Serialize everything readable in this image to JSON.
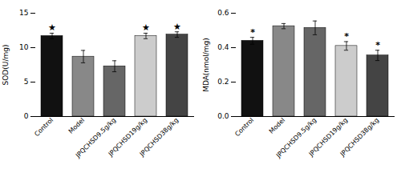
{
  "chart_data": [
    {
      "type": "bar",
      "categories": [
        "Control",
        "Model",
        "JPQCHSD9.5g/kg",
        "JPQCHSD19g/kg",
        "JPQCHSD38g/kg"
      ],
      "values": [
        11.7,
        8.7,
        7.3,
        11.7,
        11.9
      ],
      "errors": [
        0.4,
        0.9,
        0.8,
        0.4,
        0.4
      ],
      "ylabel": "SOD(U/mg)",
      "ylim": [
        0,
        15
      ],
      "yticks": [
        0,
        5,
        10,
        15
      ],
      "colors": [
        "#111111",
        "#888888",
        "#666666",
        "#cccccc",
        "#444444"
      ],
      "annotations": [
        {
          "category": "Control",
          "text": "★"
        },
        {
          "category": "JPQCHSD19g/kg",
          "text": "★"
        },
        {
          "category": "JPQCHSD38g/kg",
          "text": "★"
        }
      ]
    },
    {
      "type": "bar",
      "categories": [
        "Control",
        "Model",
        "JPQCHSD9.5g/kg",
        "JPQCHSD19g/kg",
        "JPQCHSD38g/kg"
      ],
      "values": [
        0.44,
        0.525,
        0.515,
        0.41,
        0.355
      ],
      "errors": [
        0.02,
        0.015,
        0.04,
        0.025,
        0.03
      ],
      "ylabel": "MDA(nmol/mg)",
      "ylim": [
        0,
        0.6
      ],
      "yticks": [
        {
          "value": 0.0,
          "label": "0.0"
        },
        0.2,
        0.4,
        0.6
      ],
      "colors": [
        "#111111",
        "#888888",
        "#666666",
        "#cccccc",
        "#444444"
      ],
      "annotations": [
        {
          "category": "Control",
          "text": "*"
        },
        {
          "category": "JPQCHSD19g/kg",
          "text": "*"
        },
        {
          "category": "JPQCHSD38g/kg",
          "text": "*"
        }
      ]
    }
  ]
}
